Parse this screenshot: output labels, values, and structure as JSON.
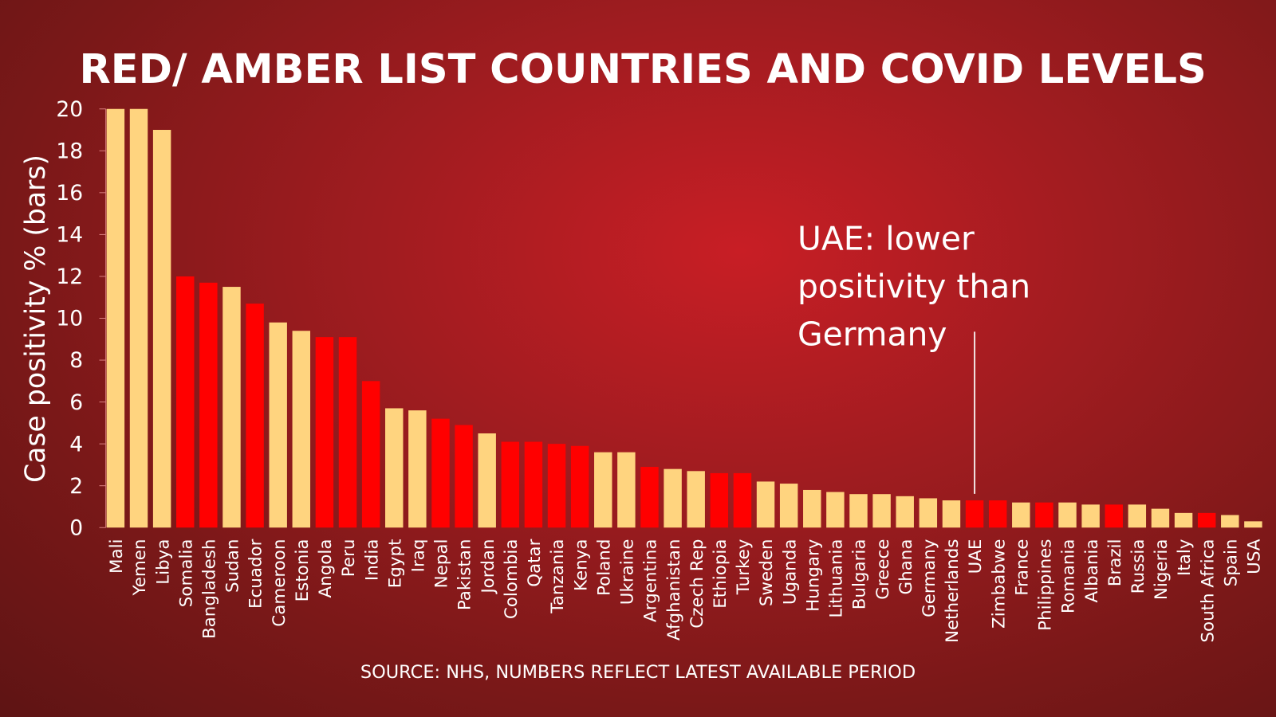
{
  "chart_data": {
    "type": "bar",
    "title": "RED/ AMBER LIST COUNTRIES AND COVID LEVELS",
    "ylabel": "Case positivity %  (bars)",
    "xlabel": "",
    "ylim": [
      0,
      20
    ],
    "yticks": [
      0,
      2,
      4,
      6,
      8,
      10,
      12,
      14,
      16,
      18,
      20
    ],
    "grid": false,
    "source": "SOURCE: NHS, NUMBERS REFLECT LATEST AVAILABLE PERIOD",
    "annotation": "UAE: lower positivity than Germany",
    "annotation_lines": [
      "UAE: lower",
      "positivity than",
      "Germany"
    ],
    "annotation_target": "UAE",
    "colors": {
      "red": "#ff0000",
      "amber": "#ffd47f"
    },
    "categories": [
      "Mali",
      "Yemen",
      "Libya",
      "Somalia",
      "Bangladesh",
      "Sudan",
      "Ecuador",
      "Cameroon",
      "Estonia",
      "Angola",
      "Peru",
      "India",
      "Egypt",
      "Iraq",
      "Nepal",
      "Pakistan",
      "Jordan",
      "Colombia",
      "Qatar",
      "Tanzania",
      "Kenya",
      "Poland",
      "Ukraine",
      "Argentina",
      "Afghanistan",
      "Czech Rep",
      "Ethiopia",
      "Turkey",
      "Sweden",
      "Uganda",
      "Hungary",
      "Lithuania",
      "Bulgaria",
      "Greece",
      "Ghana",
      "Germany",
      "Netherlands",
      "UAE",
      "Zimbabwe",
      "France",
      "Philippines",
      "Romania",
      "Albania",
      "Brazil",
      "Russia",
      "Nigeria",
      "Italy",
      "South Africa",
      "Spain",
      "USA"
    ],
    "values": [
      20,
      20,
      19,
      12,
      11.7,
      11.5,
      10.7,
      9.8,
      9.4,
      9.1,
      9.1,
      7.0,
      5.7,
      5.6,
      5.2,
      4.9,
      4.5,
      4.1,
      4.1,
      4.0,
      3.9,
      3.6,
      3.6,
      2.9,
      2.8,
      2.7,
      2.6,
      2.6,
      2.2,
      2.1,
      1.8,
      1.7,
      1.6,
      1.6,
      1.5,
      1.4,
      1.3,
      1.3,
      1.3,
      1.2,
      1.2,
      1.2,
      1.1,
      1.1,
      1.1,
      0.9,
      0.7,
      0.7,
      0.6,
      0.3
    ],
    "list": [
      "amber",
      "amber",
      "amber",
      "red",
      "red",
      "amber",
      "red",
      "amber",
      "amber",
      "red",
      "red",
      "red",
      "amber",
      "amber",
      "red",
      "red",
      "amber",
      "red",
      "red",
      "red",
      "red",
      "amber",
      "amber",
      "red",
      "amber",
      "amber",
      "red",
      "red",
      "amber",
      "amber",
      "amber",
      "amber",
      "amber",
      "amber",
      "amber",
      "amber",
      "amber",
      "red",
      "red",
      "amber",
      "red",
      "amber",
      "amber",
      "red",
      "amber",
      "amber",
      "amber",
      "red",
      "amber",
      "amber"
    ]
  }
}
